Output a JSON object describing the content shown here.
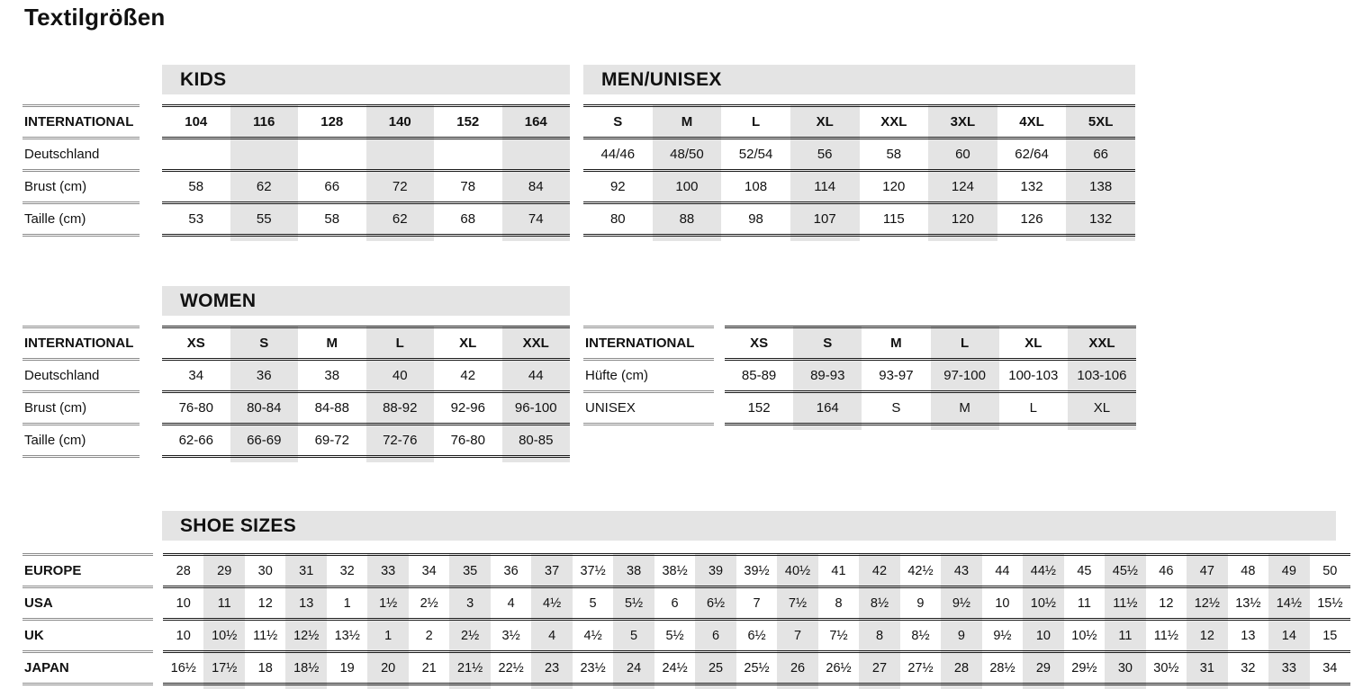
{
  "title": "Textilgrößen",
  "colors": {
    "shade": "#e4e4e4",
    "table_rule": "#1c1c1c",
    "label_rule": "#8c8c8c",
    "text": "#111111"
  },
  "row_labels_main": [
    "INTERNATIONAL",
    "Deutschland",
    "Brust (cm)",
    "Taille (cm)"
  ],
  "tables": {
    "kids": {
      "header": "KIDS",
      "columns": [
        "104",
        "116",
        "128",
        "140",
        "152",
        "164"
      ],
      "rows": [
        [
          "",
          "",
          "",
          "",
          "",
          ""
        ],
        [
          "58",
          "62",
          "66",
          "72",
          "78",
          "84"
        ],
        [
          "53",
          "55",
          "58",
          "62",
          "68",
          "74"
        ]
      ]
    },
    "men": {
      "header": "MEN/UNISEX",
      "columns": [
        "S",
        "M",
        "L",
        "XL",
        "XXL",
        "3XL",
        "4XL",
        "5XL"
      ],
      "rows": [
        [
          "44/46",
          "48/50",
          "52/54",
          "56",
          "58",
          "60",
          "62/64",
          "66"
        ],
        [
          "92",
          "100",
          "108",
          "114",
          "120",
          "124",
          "132",
          "138"
        ],
        [
          "80",
          "88",
          "98",
          "107",
          "115",
          "120",
          "126",
          "132"
        ]
      ]
    },
    "women": {
      "header": "WOMEN",
      "columns": [
        "XS",
        "S",
        "M",
        "L",
        "XL",
        "XXL"
      ],
      "rows": [
        [
          "34",
          "36",
          "38",
          "40",
          "42",
          "44"
        ],
        [
          "76-80",
          "80-84",
          "84-88",
          "88-92",
          "92-96",
          "96-100"
        ],
        [
          "62-66",
          "66-69",
          "69-72",
          "72-76",
          "76-80",
          "80-85"
        ]
      ]
    },
    "women_right": {
      "labels": [
        "INTERNATIONAL",
        "Hüfte (cm)",
        "UNISEX"
      ],
      "columns": [
        "XS",
        "S",
        "M",
        "L",
        "XL",
        "XXL"
      ],
      "rows": [
        [
          "85-89",
          "89-93",
          "93-97",
          "97-100",
          "100-103",
          "103-106"
        ],
        [
          "152",
          "164",
          "S",
          "M",
          "L",
          "XL"
        ]
      ]
    },
    "shoes": {
      "header": "SHOE SIZES",
      "labels": [
        "EUROPE",
        "USA",
        "UK",
        "JAPAN"
      ],
      "rows": [
        [
          "28",
          "29",
          "30",
          "31",
          "32",
          "33",
          "34",
          "35",
          "36",
          "37",
          "37½",
          "38",
          "38½",
          "39",
          "39½",
          "40½",
          "41",
          "42",
          "42½",
          "43",
          "44",
          "44½",
          "45",
          "45½",
          "46",
          "47",
          "48",
          "49",
          "50"
        ],
        [
          "10",
          "11",
          "12",
          "13",
          "1",
          "1½",
          "2½",
          "3",
          "4",
          "4½",
          "5",
          "5½",
          "6",
          "6½",
          "7",
          "7½",
          "8",
          "8½",
          "9",
          "9½",
          "10",
          "10½",
          "11",
          "11½",
          "12",
          "12½",
          "13½",
          "14½",
          "15½"
        ],
        [
          "10",
          "10½",
          "11½",
          "12½",
          "13½",
          "1",
          "2",
          "2½",
          "3½",
          "4",
          "4½",
          "5",
          "5½",
          "6",
          "6½",
          "7",
          "7½",
          "8",
          "8½",
          "9",
          "9½",
          "10",
          "10½",
          "11",
          "11½",
          "12",
          "13",
          "14",
          "15"
        ],
        [
          "16½",
          "17½",
          "18",
          "18½",
          "19",
          "20",
          "21",
          "21½",
          "22½",
          "23",
          "23½",
          "24",
          "24½",
          "25",
          "25½",
          "26",
          "26½",
          "27",
          "27½",
          "28",
          "28½",
          "29",
          "29½",
          "30",
          "30½",
          "31",
          "32",
          "33",
          "34"
        ]
      ]
    }
  }
}
